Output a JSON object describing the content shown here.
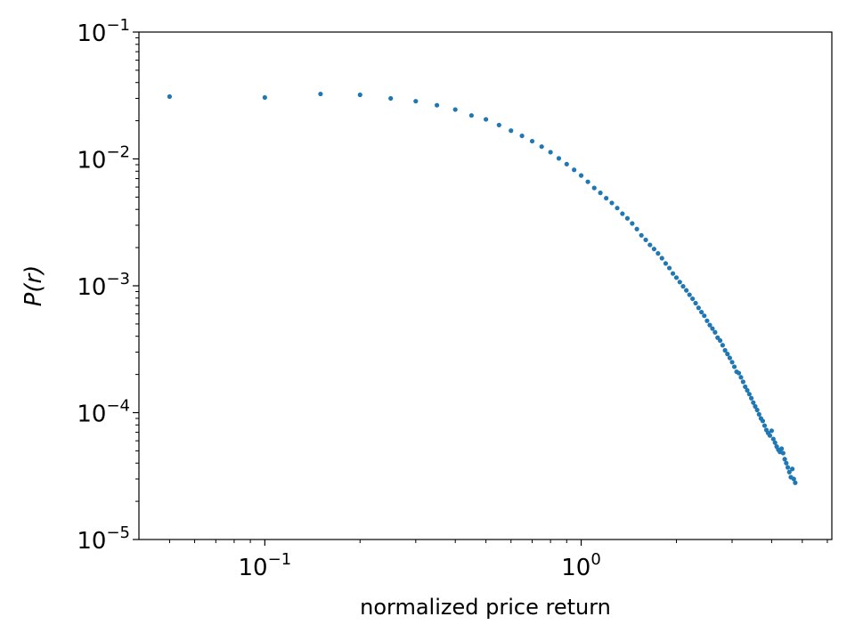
{
  "chart_data": {
    "type": "scatter",
    "xscale": "log",
    "yscale": "log",
    "xlim": [
      0.04,
      6.2
    ],
    "ylim": [
      1e-05,
      0.1
    ],
    "xlabel": "normalized price return",
    "ylabel": "P(r)",
    "marker_color": "#1f77b4",
    "grid": false,
    "x_ticks": [
      {
        "value": 0.1,
        "base": "10",
        "exp": "−1"
      },
      {
        "value": 1,
        "base": "10",
        "exp": "0"
      }
    ],
    "y_ticks": [
      {
        "value": 0.1,
        "base": "10",
        "exp": "−1"
      },
      {
        "value": 0.01,
        "base": "10",
        "exp": "−2"
      },
      {
        "value": 0.001,
        "base": "10",
        "exp": "−3"
      },
      {
        "value": 0.0001,
        "base": "10",
        "exp": "−4"
      },
      {
        "value": 1e-05,
        "base": "10",
        "exp": "−5"
      }
    ],
    "points": [
      [
        0.05,
        0.031
      ],
      [
        0.1,
        0.0305
      ],
      [
        0.15,
        0.0325
      ],
      [
        0.2,
        0.032
      ],
      [
        0.25,
        0.03
      ],
      [
        0.3,
        0.0285
      ],
      [
        0.35,
        0.0265
      ],
      [
        0.4,
        0.0245
      ],
      [
        0.45,
        0.022
      ],
      [
        0.5,
        0.0205
      ],
      [
        0.55,
        0.0185
      ],
      [
        0.6,
        0.0167
      ],
      [
        0.65,
        0.0152
      ],
      [
        0.7,
        0.0138
      ],
      [
        0.75,
        0.0125
      ],
      [
        0.8,
        0.0113
      ],
      [
        0.85,
        0.0101
      ],
      [
        0.9,
        0.0091
      ],
      [
        0.95,
        0.0082
      ],
      [
        1.0,
        0.0074
      ],
      [
        1.05,
        0.0066
      ],
      [
        1.1,
        0.0059
      ],
      [
        1.15,
        0.0054
      ],
      [
        1.2,
        0.0049
      ],
      [
        1.25,
        0.0045
      ],
      [
        1.3,
        0.0041
      ],
      [
        1.35,
        0.0037
      ],
      [
        1.4,
        0.0034
      ],
      [
        1.45,
        0.0031
      ],
      [
        1.5,
        0.0028
      ],
      [
        1.55,
        0.0025
      ],
      [
        1.6,
        0.0023
      ],
      [
        1.65,
        0.0021
      ],
      [
        1.7,
        0.00195
      ],
      [
        1.75,
        0.0018
      ],
      [
        1.8,
        0.00165
      ],
      [
        1.85,
        0.0015
      ],
      [
        1.9,
        0.00138
      ],
      [
        1.95,
        0.00125
      ],
      [
        2.0,
        0.00116
      ],
      [
        2.05,
        0.00107
      ],
      [
        2.1,
        0.00099
      ],
      [
        2.15,
        0.00092
      ],
      [
        2.2,
        0.00085
      ],
      [
        2.25,
        0.00079
      ],
      [
        2.3,
        0.00073
      ],
      [
        2.35,
        0.00067
      ],
      [
        2.4,
        0.00062
      ],
      [
        2.45,
        0.00058
      ],
      [
        2.5,
        0.00053
      ],
      [
        2.55,
        0.00049
      ],
      [
        2.6,
        0.00046
      ],
      [
        2.65,
        0.00043
      ],
      [
        2.7,
        0.00039
      ],
      [
        2.75,
        0.00037
      ],
      [
        2.8,
        0.00034
      ],
      [
        2.85,
        0.00031
      ],
      [
        2.9,
        0.00029
      ],
      [
        2.95,
        0.00027
      ],
      [
        3.0,
        0.00025
      ],
      [
        3.05,
        0.00023
      ],
      [
        3.1,
        0.00021
      ],
      [
        3.15,
        0.000205
      ],
      [
        3.2,
        0.00019
      ],
      [
        3.25,
        0.000175
      ],
      [
        3.3,
        0.00016
      ],
      [
        3.35,
        0.00015
      ],
      [
        3.4,
        0.00014
      ],
      [
        3.45,
        0.00013
      ],
      [
        3.5,
        0.00012
      ],
      [
        3.55,
        0.000112
      ],
      [
        3.6,
        0.000105
      ],
      [
        3.65,
        9.7e-05
      ],
      [
        3.7,
        9e-05
      ],
      [
        3.75,
        8.6e-05
      ],
      [
        3.8,
        7.9e-05
      ],
      [
        3.85,
        7.3e-05
      ],
      [
        3.9,
        6.9e-05
      ],
      [
        3.95,
        6.6e-05
      ],
      [
        4.0,
        7.2e-05
      ],
      [
        4.05,
        6.2e-05
      ],
      [
        4.1,
        5.8e-05
      ],
      [
        4.15,
        5.4e-05
      ],
      [
        4.2,
        5.1e-05
      ],
      [
        4.25,
        4.9e-05
      ],
      [
        4.3,
        5.2e-05
      ],
      [
        4.35,
        4.8e-05
      ],
      [
        4.4,
        4.3e-05
      ],
      [
        4.45,
        4e-05
      ],
      [
        4.5,
        3.7e-05
      ],
      [
        4.55,
        3.4e-05
      ],
      [
        4.6,
        3.1e-05
      ],
      [
        4.65,
        3.6e-05
      ],
      [
        4.7,
        3e-05
      ],
      [
        4.75,
        2.8e-05
      ]
    ]
  }
}
